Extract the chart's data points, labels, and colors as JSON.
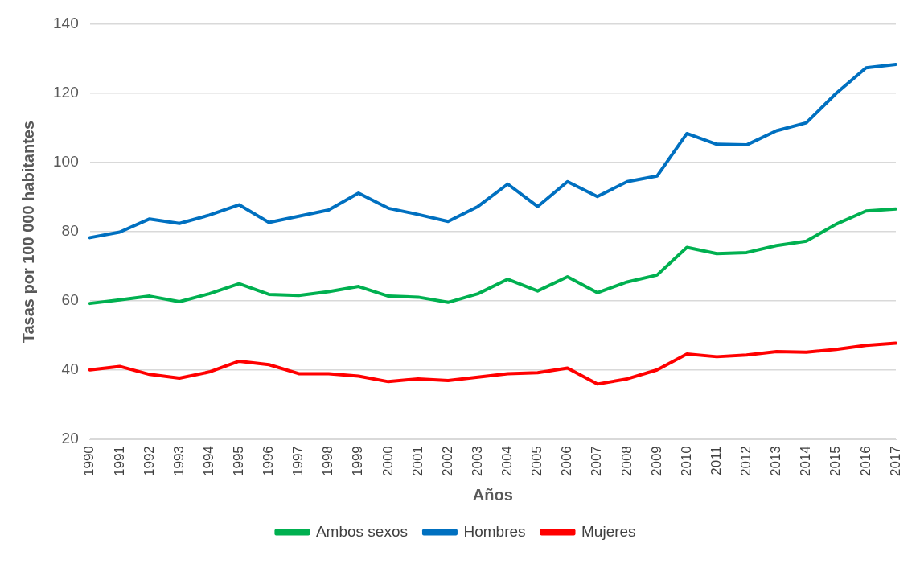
{
  "chart_data": {
    "type": "line",
    "xlabel": "Años",
    "ylabel": "Tasas por 100 000 habitantes",
    "categories": [
      "1990",
      "1991",
      "1992",
      "1993",
      "1994",
      "1995",
      "1996",
      "1997",
      "1998",
      "1999",
      "2000",
      "2001",
      "2002",
      "2003",
      "2004",
      "2005",
      "2006",
      "2007",
      "2008",
      "2009",
      "2010",
      "2011",
      "2012",
      "2013",
      "2014",
      "2015",
      "2016",
      "2017"
    ],
    "series": [
      {
        "name": "Ambos sexos",
        "color": "#00b050",
        "values": [
          59.3,
          60.3,
          61.4,
          59.8,
          62.1,
          65.0,
          61.9,
          61.6,
          62.7,
          64.2,
          61.4,
          61.1,
          59.6,
          62.1,
          66.3,
          62.9,
          67.0,
          62.4,
          65.5,
          67.5,
          75.5,
          73.7,
          74.0,
          76.0,
          77.3,
          82.2,
          86.0,
          86.6
        ]
      },
      {
        "name": "Hombres",
        "color": "#0070c0",
        "values": [
          78.3,
          79.9,
          83.7,
          82.4,
          84.8,
          87.8,
          82.7,
          84.5,
          86.3,
          91.2,
          86.8,
          85.0,
          83.0,
          87.3,
          93.8,
          87.3,
          94.5,
          90.2,
          94.5,
          96.1,
          108.4,
          105.3,
          105.1,
          109.2,
          111.5,
          120.0,
          127.4,
          128.4
        ]
      },
      {
        "name": "Mujeres",
        "color": "#ff0000",
        "values": [
          40.1,
          41.1,
          38.8,
          37.7,
          39.5,
          42.6,
          41.6,
          39.0,
          39.0,
          38.3,
          36.7,
          37.5,
          37.0,
          38.0,
          39.0,
          39.3,
          40.6,
          36.0,
          37.5,
          40.1,
          44.7,
          43.9,
          44.4,
          45.4,
          45.2,
          46.0,
          47.2,
          47.8
        ]
      }
    ],
    "ylim": [
      20,
      140
    ],
    "yticks": [
      20,
      40,
      60,
      80,
      100,
      120,
      140
    ],
    "grid": "y",
    "legend": "bottom",
    "marker": "none",
    "line_style": "solid"
  }
}
